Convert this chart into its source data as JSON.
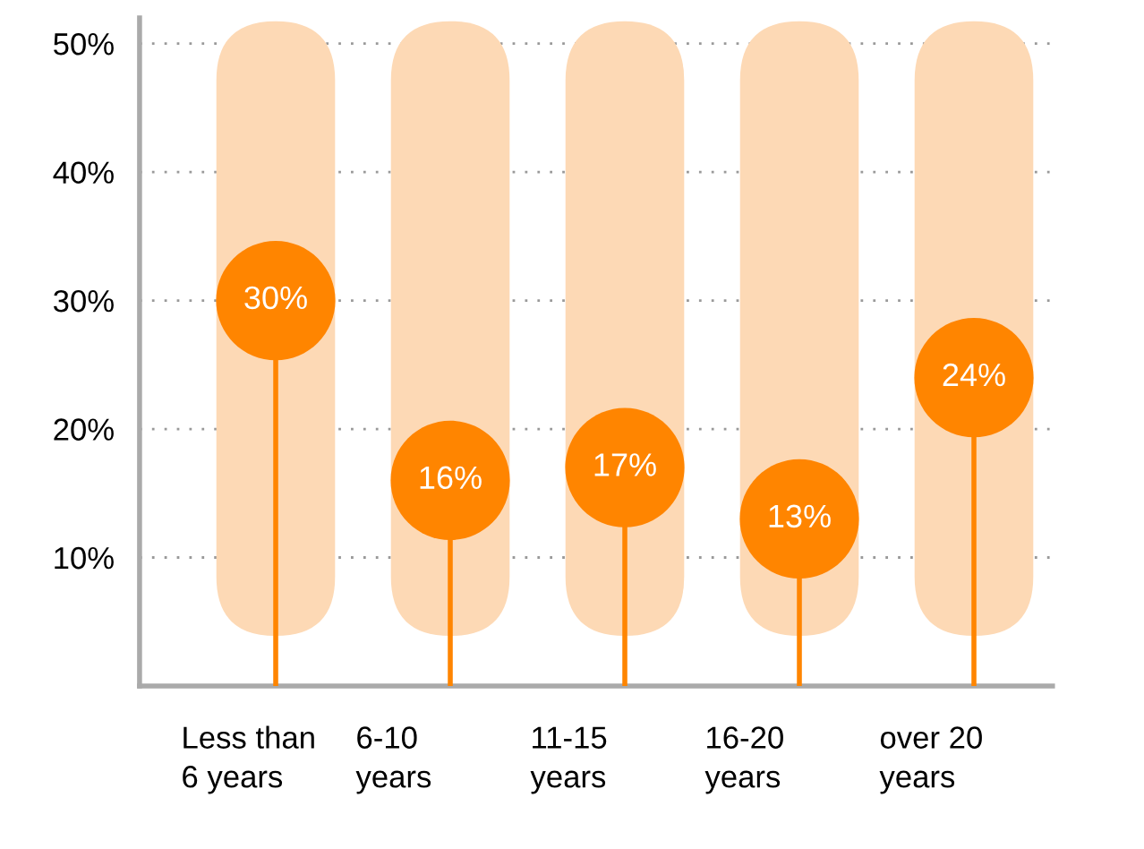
{
  "chart_data": {
    "type": "lollipop",
    "categories": [
      "Less than\n6 years",
      "6-10\nyears",
      "11-15\nyears",
      "16-20\nyears",
      "over 20\nyears"
    ],
    "values": [
      30,
      16,
      17,
      13,
      24
    ],
    "color": "#ff8500",
    "value_labels": [
      "30%",
      "16%",
      "17%",
      "13%",
      "24%"
    ],
    "ylim": [
      0,
      52
    ],
    "yticks": [
      {
        "value": 10,
        "label": "10%"
      },
      {
        "value": 20,
        "label": "20%"
      },
      {
        "value": 30,
        "label": "30%"
      },
      {
        "value": 40,
        "label": "40%"
      },
      {
        "value": 50,
        "label": "50%"
      }
    ],
    "grid": "y"
  }
}
